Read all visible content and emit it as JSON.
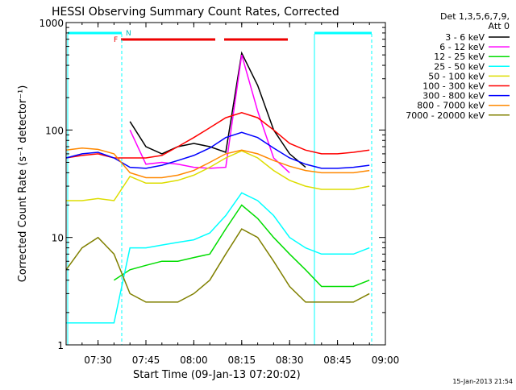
{
  "chart_data": {
    "type": "line",
    "title": "HESSI Observing Summary Count Rates, Corrected",
    "xlabel": "Start Time (09-Jan-13 07:20:02)",
    "ylabel": "Corrected Count Rate (s⁻¹ detector⁻¹)",
    "y_scale": "log",
    "ylim": [
      1,
      1000
    ],
    "xlim": [
      "07:20",
      "09:00"
    ],
    "x_ticks": [
      "07:30",
      "07:45",
      "08:00",
      "08:15",
      "08:30",
      "08:45",
      "09:00"
    ],
    "y_ticks": [
      "1",
      "10",
      "100",
      "1000"
    ],
    "legend_header": [
      "Det 1,3,5,6,7,9,",
      "Att 0"
    ],
    "legend_position": "right",
    "footer": "15-Jan-2013 21:54",
    "flag_labels": {
      "F": "F",
      "N": "N"
    },
    "x": [
      "07:20",
      "07:25",
      "07:30",
      "07:35",
      "07:40",
      "07:45",
      "07:50",
      "07:55",
      "08:00",
      "08:05",
      "08:10",
      "08:15",
      "08:20",
      "08:25",
      "08:30",
      "08:35",
      "08:40",
      "08:45",
      "08:50",
      "08:55"
    ],
    "series": [
      {
        "name": "3 - 6 keV",
        "color": "#000000",
        "values": [
          null,
          null,
          null,
          null,
          120,
          70,
          60,
          70,
          75,
          70,
          62,
          520,
          260,
          100,
          60,
          45,
          null,
          null,
          null,
          null
        ]
      },
      {
        "name": "6 - 12 keV",
        "color": "#ff00ff",
        "values": [
          null,
          null,
          null,
          null,
          100,
          48,
          50,
          48,
          45,
          44,
          45,
          500,
          150,
          55,
          40,
          null,
          null,
          null,
          null,
          null
        ]
      },
      {
        "name": "12 - 25 keV",
        "color": "#00dd00",
        "values": [
          null,
          null,
          null,
          4,
          5,
          5.5,
          6,
          6,
          6.5,
          7,
          12,
          20,
          15,
          10,
          7,
          5,
          3.5,
          3.5,
          3.5,
          4
        ]
      },
      {
        "name": "25 - 50 keV",
        "color": "#00ffff",
        "values": [
          1.6,
          1.6,
          1.6,
          1.6,
          8,
          8,
          8.5,
          9,
          9.5,
          11,
          16,
          26,
          22,
          16,
          10,
          8,
          7,
          7,
          7,
          8
        ]
      },
      {
        "name": "50 - 100 keV",
        "color": "#dddd00",
        "values": [
          22,
          22,
          23,
          22,
          37,
          32,
          32,
          34,
          38,
          45,
          55,
          64,
          55,
          42,
          34,
          30,
          28,
          28,
          28,
          30
        ]
      },
      {
        "name": "100 - 300 keV",
        "color": "#ff0000",
        "values": [
          55,
          58,
          60,
          55,
          55,
          55,
          58,
          70,
          85,
          105,
          130,
          145,
          130,
          100,
          75,
          65,
          60,
          60,
          62,
          65
        ]
      },
      {
        "name": "300 - 800 keV",
        "color": "#0000ff",
        "values": [
          55,
          60,
          62,
          55,
          45,
          44,
          47,
          52,
          58,
          68,
          85,
          95,
          85,
          68,
          55,
          48,
          44,
          44,
          45,
          47
        ]
      },
      {
        "name": "800 - 7000 keV",
        "color": "#ff8800",
        "values": [
          65,
          68,
          66,
          60,
          40,
          36,
          36,
          38,
          42,
          50,
          60,
          65,
          60,
          52,
          46,
          42,
          40,
          40,
          40,
          42
        ]
      },
      {
        "name": "7000 - 20000 keV",
        "color": "#808000",
        "values": [
          5,
          8,
          10,
          7,
          3,
          2.5,
          2.5,
          2.5,
          3,
          4,
          7,
          12,
          10,
          6,
          3.5,
          2.5,
          2.5,
          2.5,
          2.5,
          3
        ]
      }
    ]
  }
}
